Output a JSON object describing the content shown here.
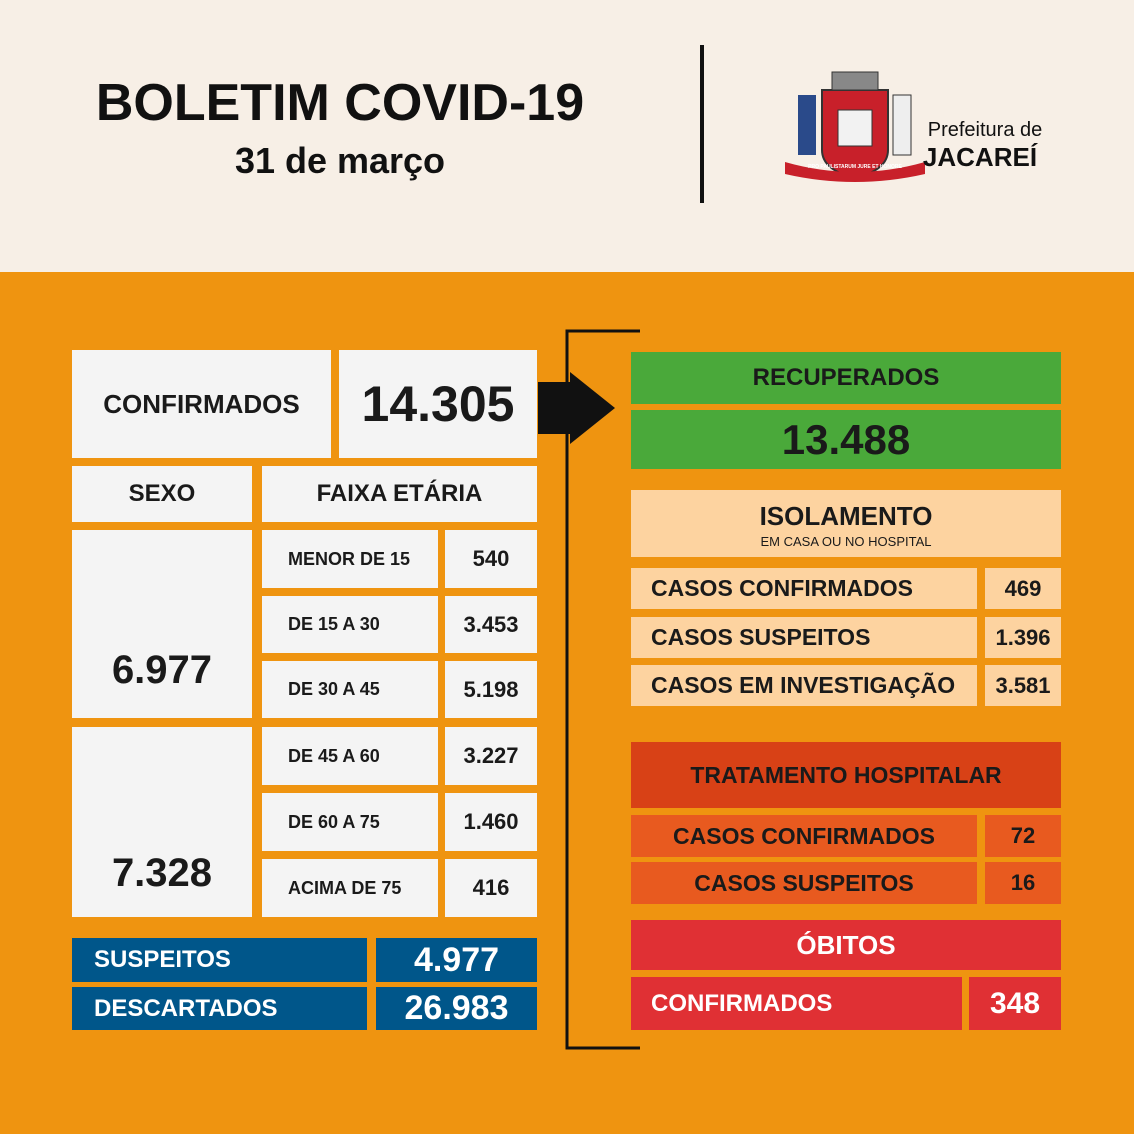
{
  "header": {
    "title": "BOLETIM COVID-19",
    "date": "31 de março",
    "org_line1": "Prefeitura de",
    "org_line2": "JACAREÍ",
    "motto": "PRO PAULISTARUM JURE ET HONORE"
  },
  "left": {
    "confirmed": {
      "label": "CONFIRMADOS",
      "value": "14.305"
    },
    "sex_header": "SEXO",
    "age_header": "FAIXA ETÁRIA",
    "male": "6.977",
    "female": "7.328",
    "age_rows": [
      [
        "MENOR DE 15",
        "540"
      ],
      [
        "DE 15 A 30",
        "3.453"
      ],
      [
        "DE 30 A 45",
        "5.198"
      ],
      [
        "DE 45 A 60",
        "3.227"
      ],
      [
        "DE 60 A 75",
        "1.460"
      ],
      [
        "ACIMA DE 75",
        "416"
      ]
    ],
    "suspects": {
      "label": "SUSPEITOS",
      "value": "4.977"
    },
    "discarded": {
      "label": "DESCARTADOS",
      "value": "26.983"
    }
  },
  "right": {
    "recovered": {
      "label": "RECUPERADOS",
      "value": "13.488"
    },
    "isolation": {
      "title": "ISOLAMENTO",
      "subtitle": "EM CASA OU NO HOSPITAL",
      "rows": [
        [
          "CASOS CONFIRMADOS",
          "469"
        ],
        [
          "CASOS SUSPEITOS",
          "1.396"
        ],
        [
          "CASOS EM INVESTIGAÇÃO",
          "3.581"
        ]
      ]
    },
    "hospital": {
      "title": "TRATAMENTO HOSPITALAR",
      "rows": [
        [
          "CASOS CONFIRMADOS",
          "72"
        ],
        [
          "CASOS SUSPEITOS",
          "16"
        ]
      ]
    },
    "deaths": {
      "title": "ÓBITOS",
      "label": "CONFIRMADOS",
      "value": "348"
    }
  }
}
